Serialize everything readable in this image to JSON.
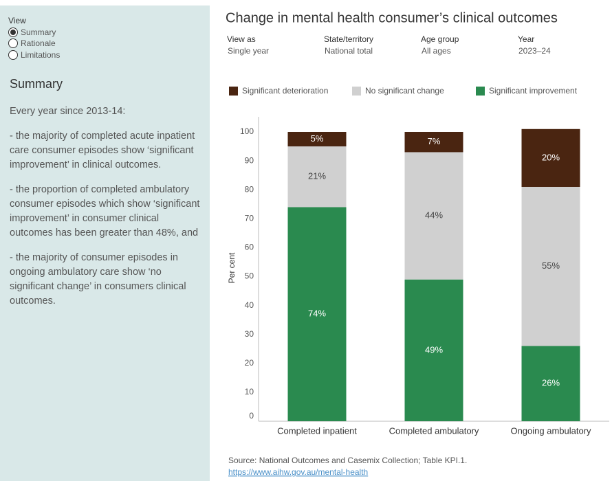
{
  "sidebar": {
    "view_label": "View",
    "options": [
      "Summary",
      "Rationale",
      "Limitations"
    ],
    "heading": "Summary",
    "paragraphs": [
      "Every year since 2013-14:",
      "- the majority of completed acute inpatient care consumer episodes show ‘significant improvement’ in clinical outcomes.",
      "- the proportion of completed ambulatory consumer episodes which show ‘significant improvement’ in consumer clinical outcomes has been greater than 48%, and",
      "- the majority of consumer episodes in ongoing ambulatory care show ‘no significant change’ in consumers clinical outcomes."
    ]
  },
  "filters": [
    {
      "label": "View as",
      "value": "Single year"
    },
    {
      "label": "State/territory",
      "value": "National total"
    },
    {
      "label": "Age group",
      "value": "All ages"
    },
    {
      "label": "Year",
      "value": "2023–24"
    }
  ],
  "chart_data": {
    "type": "stacked_bar",
    "title": "Change in mental health consumer’s clinical outcomes",
    "y_label": "Per cent",
    "categories": [
      "Completed inpatient",
      "Completed ambulatory",
      "Ongoing ambulatory"
    ],
    "series": [
      {
        "name": "Significant deterioration",
        "color": "#4a2511",
        "values": [
          5,
          7,
          20
        ],
        "value_labels": [
          "5%",
          "7%",
          "20%"
        ]
      },
      {
        "name": "No significant change",
        "color": "#d0d0d0",
        "values": [
          21,
          44,
          55
        ],
        "value_labels": [
          "21%",
          "44%",
          "55%"
        ]
      },
      {
        "name": "Significant improvement",
        "color": "#2a8a4f",
        "values": [
          74,
          49,
          26
        ],
        "value_labels": [
          "74%",
          "49%",
          "26%"
        ]
      }
    ],
    "ylim": [
      0,
      100
    ],
    "yticks": [
      0,
      10,
      20,
      30,
      40,
      50,
      60,
      70,
      80,
      90,
      100
    ],
    "grid": false
  },
  "source": {
    "text": "Source: National Outcomes and Casemix Collection; Table KPI.1.",
    "link": "https://www.aihw.gov.au/mental-health"
  }
}
